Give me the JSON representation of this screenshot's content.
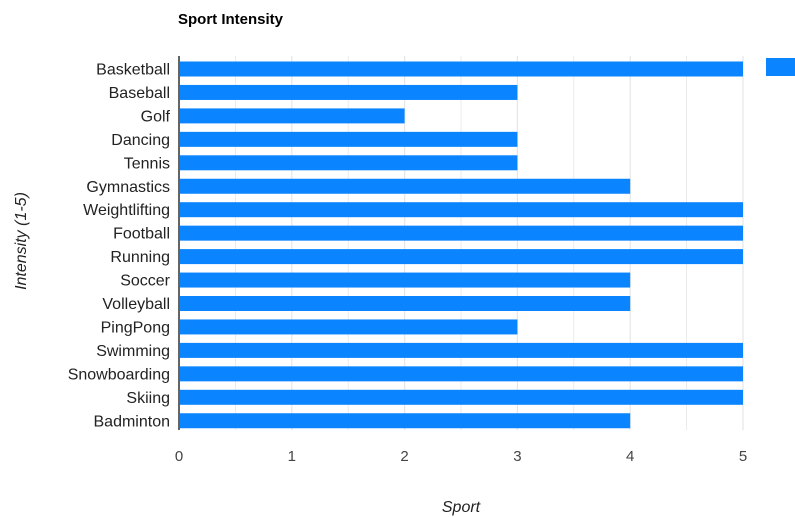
{
  "colors": {
    "bar": "#0a84ff",
    "gridline": "#e6e6e6",
    "axis_line": "#333333",
    "background": "#ffffff"
  },
  "chart_data": {
    "type": "bar",
    "orientation": "horizontal",
    "title": "Sport Intensity",
    "xlabel": "Sport",
    "ylabel": "Intensity (1-5)",
    "categories": [
      "Basketball",
      "Baseball",
      "Golf",
      "Dancing",
      "Tennis",
      "Gymnastics",
      "Weightlifting",
      "Football",
      "Running",
      "Soccer",
      "Volleyball",
      "PingPong",
      "Swimming",
      "Snowboarding",
      "Skiing",
      "Badminton"
    ],
    "series": [
      {
        "values": [
          5,
          3,
          2,
          3,
          3,
          4,
          5,
          5,
          5,
          4,
          4,
          3,
          5,
          5,
          5,
          4
        ]
      }
    ],
    "xlim": [
      0,
      5
    ],
    "x_ticks": [
      "0",
      "1",
      "2",
      "3",
      "4",
      "5"
    ],
    "grid": true,
    "legend": "right (swatch only)"
  }
}
